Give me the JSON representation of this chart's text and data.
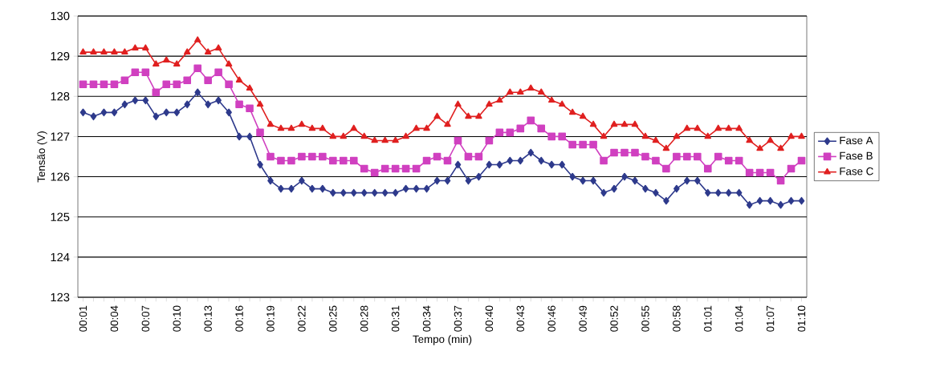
{
  "chart_data": {
    "type": "line",
    "xlabel": "Tempo (min)",
    "ylabel": "Tensão (V)",
    "categories": [
      "00:01",
      null,
      null,
      "00:04",
      null,
      null,
      "00:07",
      null,
      null,
      "00:10",
      null,
      null,
      "00:13",
      null,
      null,
      "00:16",
      null,
      null,
      "00:19",
      null,
      null,
      "00:22",
      null,
      null,
      "00:25",
      null,
      null,
      "00:28",
      null,
      null,
      "00:31",
      null,
      null,
      "00:34",
      null,
      null,
      "00:37",
      null,
      null,
      "00:40",
      null,
      null,
      "00:43",
      null,
      null,
      "00:46",
      null,
      null,
      "00:49",
      null,
      null,
      "00:52",
      null,
      null,
      "00:55",
      null,
      null,
      "00:58",
      null,
      null,
      "01:01",
      null,
      null,
      "01:04",
      null,
      null,
      "01:07",
      null,
      null,
      "01:10"
    ],
    "series": [
      {
        "name": "Fase A",
        "color": "#2e3a8c",
        "marker": "diamond",
        "values": [
          127.6,
          127.5,
          127.6,
          127.6,
          127.8,
          127.9,
          127.9,
          127.5,
          127.6,
          127.6,
          127.8,
          128.1,
          127.8,
          127.9,
          127.6,
          127.0,
          127.0,
          126.3,
          125.9,
          125.7,
          125.7,
          125.9,
          125.7,
          125.7,
          125.6,
          125.6,
          125.6,
          125.6,
          125.6,
          125.6,
          125.6,
          125.7,
          125.7,
          125.7,
          125.9,
          125.9,
          126.3,
          125.9,
          126.0,
          126.3,
          126.3,
          126.4,
          126.4,
          126.6,
          126.4,
          126.3,
          126.3,
          126.0,
          125.9,
          125.9,
          125.6,
          125.7,
          126.0,
          125.9,
          125.7,
          125.6,
          125.4,
          125.7,
          125.9,
          125.9,
          125.6,
          125.6,
          125.6,
          125.6,
          125.3,
          125.4,
          125.4,
          125.3,
          125.4,
          125.4
        ]
      },
      {
        "name": "Fase B",
        "color": "#d040c0",
        "marker": "square",
        "values": [
          128.3,
          128.3,
          128.3,
          128.3,
          128.4,
          128.6,
          128.6,
          128.1,
          128.3,
          128.3,
          128.4,
          128.7,
          128.4,
          128.6,
          128.3,
          127.8,
          127.7,
          127.1,
          126.5,
          126.4,
          126.4,
          126.5,
          126.5,
          126.5,
          126.4,
          126.4,
          126.4,
          126.2,
          126.1,
          126.2,
          126.2,
          126.2,
          126.2,
          126.4,
          126.5,
          126.4,
          126.9,
          126.5,
          126.5,
          126.9,
          127.1,
          127.1,
          127.2,
          127.4,
          127.2,
          127.0,
          127.0,
          126.8,
          126.8,
          126.8,
          126.4,
          126.6,
          126.6,
          126.6,
          126.5,
          126.4,
          126.2,
          126.5,
          126.5,
          126.5,
          126.2,
          126.5,
          126.4,
          126.4,
          126.1,
          126.1,
          126.1,
          125.9,
          126.2,
          126.4
        ]
      },
      {
        "name": "Fase C",
        "color": "#e02020",
        "marker": "triangle",
        "values": [
          129.1,
          129.1,
          129.1,
          129.1,
          129.1,
          129.2,
          129.2,
          128.8,
          128.9,
          128.8,
          129.1,
          129.4,
          129.1,
          129.2,
          128.8,
          128.4,
          128.2,
          127.8,
          127.3,
          127.2,
          127.2,
          127.3,
          127.2,
          127.2,
          127.0,
          127.0,
          127.2,
          127.0,
          126.9,
          126.9,
          126.9,
          127.0,
          127.2,
          127.2,
          127.5,
          127.3,
          127.8,
          127.5,
          127.5,
          127.8,
          127.9,
          128.1,
          128.1,
          128.2,
          128.1,
          127.9,
          127.8,
          127.6,
          127.5,
          127.3,
          127.0,
          127.3,
          127.3,
          127.3,
          127.0,
          126.9,
          126.7,
          127.0,
          127.2,
          127.2,
          127.0,
          127.2,
          127.2,
          127.2,
          126.9,
          126.7,
          126.9,
          126.7,
          127.0,
          127.0
        ]
      }
    ],
    "ylim": [
      123,
      130
    ],
    "yticks": [
      123,
      124,
      125,
      126,
      127,
      128,
      129,
      130
    ],
    "grid": "y",
    "legend": "right",
    "line_style": "solid"
  }
}
